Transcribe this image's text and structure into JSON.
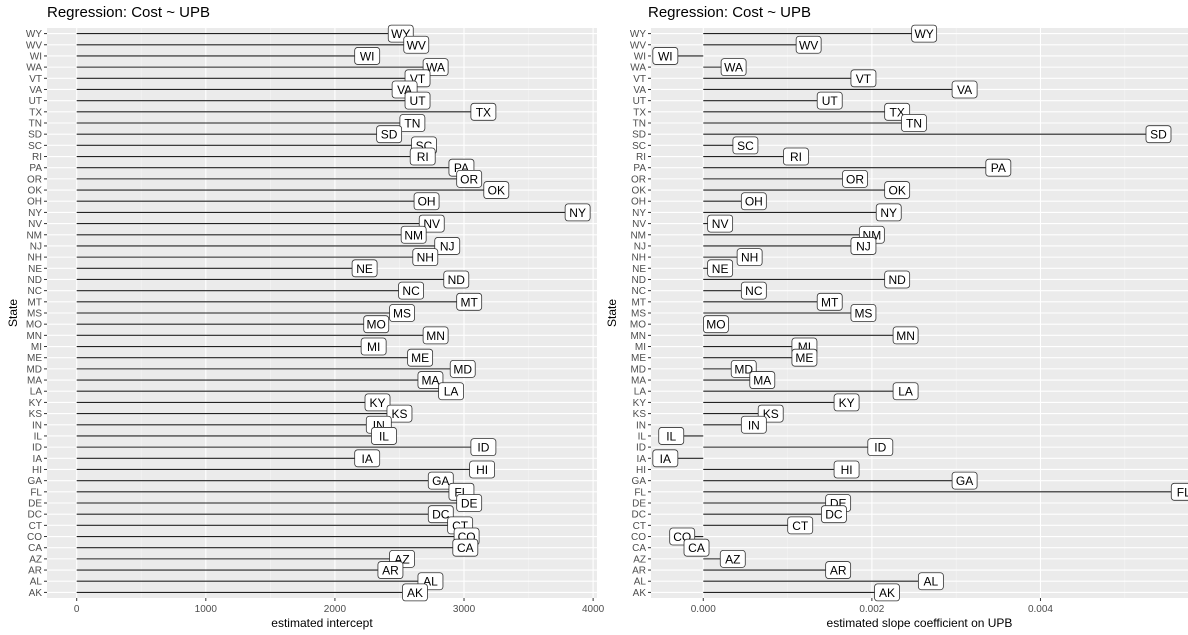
{
  "chart_data": [
    {
      "type": "lollipop-bar",
      "title": "Regression: Cost ~ UPB",
      "xlabel": "estimated intercept",
      "ylabel": "State",
      "xlim": [
        -230,
        4030
      ],
      "xticks": [
        0,
        1000,
        2000,
        3000,
        4000
      ],
      "xtick_labels": [
        "0",
        "1000",
        "2000",
        "3000",
        "4000"
      ],
      "grid": true,
      "points": [
        {
          "state": "WY",
          "value": 2510
        },
        {
          "state": "WV",
          "value": 2630
        },
        {
          "state": "WI",
          "value": 2250
        },
        {
          "state": "WA",
          "value": 2780
        },
        {
          "state": "VT",
          "value": 2640
        },
        {
          "state": "VA",
          "value": 2540
        },
        {
          "state": "UT",
          "value": 2640
        },
        {
          "state": "TX",
          "value": 3150
        },
        {
          "state": "TN",
          "value": 2600
        },
        {
          "state": "SD",
          "value": 2420
        },
        {
          "state": "SC",
          "value": 2690
        },
        {
          "state": "RI",
          "value": 2680
        },
        {
          "state": "PA",
          "value": 2980
        },
        {
          "state": "OR",
          "value": 3040
        },
        {
          "state": "OK",
          "value": 3250
        },
        {
          "state": "OH",
          "value": 2710
        },
        {
          "state": "NY",
          "value": 3880
        },
        {
          "state": "NV",
          "value": 2750
        },
        {
          "state": "NM",
          "value": 2610
        },
        {
          "state": "NJ",
          "value": 2870
        },
        {
          "state": "NH",
          "value": 2700
        },
        {
          "state": "NE",
          "value": 2230
        },
        {
          "state": "ND",
          "value": 2940
        },
        {
          "state": "NC",
          "value": 2590
        },
        {
          "state": "MT",
          "value": 3040
        },
        {
          "state": "MS",
          "value": 2520
        },
        {
          "state": "MO",
          "value": 2320
        },
        {
          "state": "MN",
          "value": 2780
        },
        {
          "state": "MI",
          "value": 2300
        },
        {
          "state": "ME",
          "value": 2660
        },
        {
          "state": "MD",
          "value": 2990
        },
        {
          "state": "MA",
          "value": 2740
        },
        {
          "state": "LA",
          "value": 2900
        },
        {
          "state": "KY",
          "value": 2330
        },
        {
          "state": "KS",
          "value": 2500
        },
        {
          "state": "IN",
          "value": 2340
        },
        {
          "state": "IL",
          "value": 2380
        },
        {
          "state": "ID",
          "value": 3150
        },
        {
          "state": "IA",
          "value": 2250
        },
        {
          "state": "HI",
          "value": 3140
        },
        {
          "state": "GA",
          "value": 2820
        },
        {
          "state": "FL",
          "value": 2980
        },
        {
          "state": "DE",
          "value": 3040
        },
        {
          "state": "DC",
          "value": 2820
        },
        {
          "state": "CT",
          "value": 2970
        },
        {
          "state": "CO",
          "value": 3020
        },
        {
          "state": "CA",
          "value": 3010
        },
        {
          "state": "AZ",
          "value": 2520
        },
        {
          "state": "AR",
          "value": 2430
        },
        {
          "state": "AL",
          "value": 2740
        },
        {
          "state": "AK",
          "value": 2620
        }
      ]
    },
    {
      "type": "lollipop-bar",
      "title": "Regression: Cost ~ UPB",
      "xlabel": "estimated slope coefficient on UPB",
      "ylabel": "State",
      "xlim": [
        -0.00062,
        0.00575
      ],
      "xticks": [
        0,
        0.002,
        0.004
      ],
      "xtick_labels": [
        "0.000",
        "0.002",
        "0.004"
      ],
      "grid": true,
      "points": [
        {
          "state": "WY",
          "value": 0.00262
        },
        {
          "state": "WV",
          "value": 0.00125
        },
        {
          "state": "WI",
          "value": -0.00045
        },
        {
          "state": "WA",
          "value": 0.00036
        },
        {
          "state": "VT",
          "value": 0.0019
        },
        {
          "state": "VA",
          "value": 0.0031
        },
        {
          "state": "UT",
          "value": 0.0015
        },
        {
          "state": "TX",
          "value": 0.0023
        },
        {
          "state": "TN",
          "value": 0.0025
        },
        {
          "state": "SD",
          "value": 0.0054
        },
        {
          "state": "SC",
          "value": 0.0005
        },
        {
          "state": "RI",
          "value": 0.0011
        },
        {
          "state": "PA",
          "value": 0.0035
        },
        {
          "state": "OR",
          "value": 0.0018
        },
        {
          "state": "OK",
          "value": 0.0023
        },
        {
          "state": "OH",
          "value": 0.0006
        },
        {
          "state": "NY",
          "value": 0.0022
        },
        {
          "state": "NV",
          "value": 0.0002
        },
        {
          "state": "NM",
          "value": 0.002
        },
        {
          "state": "NJ",
          "value": 0.0019
        },
        {
          "state": "NH",
          "value": 0.00055
        },
        {
          "state": "NE",
          "value": 0.0002
        },
        {
          "state": "ND",
          "value": 0.0023
        },
        {
          "state": "NC",
          "value": 0.0006
        },
        {
          "state": "MT",
          "value": 0.0015
        },
        {
          "state": "MS",
          "value": 0.0019
        },
        {
          "state": "MO",
          "value": 0.00015
        },
        {
          "state": "MN",
          "value": 0.0024
        },
        {
          "state": "MI",
          "value": 0.0012
        },
        {
          "state": "ME",
          "value": 0.0012
        },
        {
          "state": "MD",
          "value": 0.00048
        },
        {
          "state": "MA",
          "value": 0.0007
        },
        {
          "state": "LA",
          "value": 0.0024
        },
        {
          "state": "KY",
          "value": 0.0017
        },
        {
          "state": "KS",
          "value": 0.0008
        },
        {
          "state": "IN",
          "value": 0.0006
        },
        {
          "state": "IL",
          "value": -0.00038
        },
        {
          "state": "ID",
          "value": 0.0021
        },
        {
          "state": "IA",
          "value": -0.00045
        },
        {
          "state": "HI",
          "value": 0.0017
        },
        {
          "state": "GA",
          "value": 0.0031
        },
        {
          "state": "FL",
          "value": 0.0057
        },
        {
          "state": "DE",
          "value": 0.0016
        },
        {
          "state": "DC",
          "value": 0.00155
        },
        {
          "state": "CT",
          "value": 0.00115
        },
        {
          "state": "CO",
          "value": -0.00025
        },
        {
          "state": "CA",
          "value": -8e-05
        },
        {
          "state": "AZ",
          "value": 0.00035
        },
        {
          "state": "AR",
          "value": 0.0016
        },
        {
          "state": "AL",
          "value": 0.0027
        },
        {
          "state": "AK",
          "value": 0.00218
        }
      ]
    }
  ]
}
